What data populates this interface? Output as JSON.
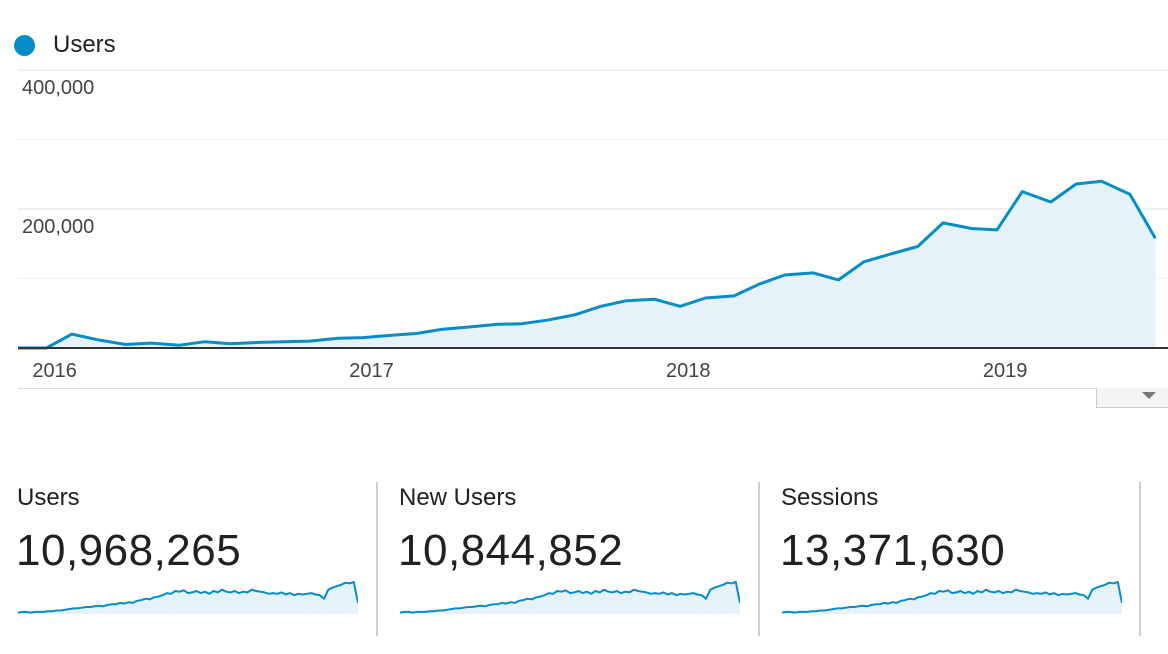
{
  "legend": {
    "label": "Users",
    "color": "#058dc7"
  },
  "chart_data": {
    "type": "area",
    "series": [
      {
        "name": "Users",
        "color": "#058dc7",
        "x": [
          2015.9,
          2015.99,
          2016.07,
          2016.15,
          2016.24,
          2016.32,
          2016.41,
          2016.49,
          2016.57,
          2016.66,
          2016.74,
          2016.82,
          2016.91,
          2016.99,
          2017.07,
          2017.16,
          2017.24,
          2017.32,
          2017.41,
          2017.49,
          2017.57,
          2017.66,
          2017.74,
          2017.82,
          2017.91,
          2017.99,
          2018.07,
          2018.16,
          2018.24,
          2018.32,
          2018.41,
          2018.49,
          2018.57,
          2018.66,
          2018.74,
          2018.82,
          2018.91,
          2018.99,
          2019.07,
          2019.16,
          2019.24,
          2019.32,
          2019.41,
          2019.49
        ],
        "values": [
          0,
          0,
          20000,
          12000,
          5000,
          7000,
          4000,
          9000,
          6000,
          8000,
          9000,
          10000,
          14000,
          15000,
          18000,
          21000,
          27000,
          30000,
          34000,
          35000,
          40000,
          48000,
          60000,
          68000,
          70000,
          60000,
          72000,
          75000,
          92000,
          105000,
          108000,
          98000,
          124000,
          136000,
          146000,
          180000,
          172000,
          170000,
          225000,
          210000,
          236000,
          240000,
          221000,
          158000
        ]
      }
    ],
    "ylim": [
      0,
      400000
    ],
    "yticks": [
      200000,
      400000
    ],
    "ytick_labels": [
      "200,000",
      "400,000"
    ],
    "xticks": [
      2016,
      2017,
      2018,
      2019
    ],
    "xtick_labels": [
      "2016",
      "2017",
      "2018",
      "2019"
    ],
    "xlim": [
      2015.9,
      2019.53
    ],
    "grid": true
  },
  "metrics": [
    {
      "title": "Users",
      "value": "10,968,265",
      "spark": [
        2,
        3,
        3,
        2,
        3,
        3,
        3,
        4,
        4,
        5,
        5,
        6,
        7,
        8,
        8,
        9,
        10,
        10,
        11,
        12,
        11,
        13,
        14,
        14,
        16,
        15,
        17,
        16,
        19,
        20,
        22,
        21,
        24,
        25,
        27,
        30,
        29,
        33,
        32,
        34,
        30,
        31,
        33,
        30,
        32,
        29,
        33,
        31,
        35,
        32,
        31,
        33,
        30,
        32,
        31,
        35,
        33,
        32,
        31,
        29,
        30,
        29,
        31,
        28,
        30,
        27,
        29,
        28,
        29,
        30,
        28,
        27,
        22,
        35,
        38,
        40,
        42,
        45,
        44,
        46,
        16
      ]
    },
    {
      "title": "New Users",
      "value": "10,844,852",
      "spark": [
        2,
        3,
        3,
        2,
        3,
        3,
        3,
        4,
        4,
        5,
        5,
        6,
        7,
        8,
        8,
        9,
        10,
        10,
        11,
        12,
        11,
        13,
        14,
        14,
        16,
        15,
        17,
        16,
        19,
        20,
        22,
        21,
        24,
        25,
        27,
        30,
        29,
        33,
        32,
        34,
        30,
        31,
        33,
        30,
        32,
        29,
        33,
        31,
        35,
        32,
        31,
        33,
        30,
        32,
        31,
        35,
        33,
        32,
        31,
        29,
        30,
        29,
        31,
        28,
        30,
        27,
        29,
        28,
        29,
        30,
        28,
        27,
        22,
        35,
        38,
        40,
        42,
        45,
        44,
        46,
        16
      ]
    },
    {
      "title": "Sessions",
      "value": "13,371,630",
      "spark": [
        2,
        3,
        3,
        2,
        3,
        3,
        3,
        4,
        4,
        5,
        5,
        6,
        7,
        8,
        8,
        9,
        10,
        10,
        11,
        12,
        11,
        13,
        14,
        14,
        16,
        15,
        17,
        16,
        19,
        20,
        22,
        21,
        24,
        25,
        27,
        30,
        29,
        33,
        32,
        34,
        30,
        31,
        33,
        30,
        32,
        29,
        33,
        31,
        35,
        32,
        31,
        33,
        30,
        32,
        31,
        35,
        33,
        32,
        31,
        29,
        30,
        29,
        31,
        28,
        30,
        27,
        29,
        28,
        29,
        30,
        28,
        27,
        22,
        35,
        38,
        40,
        42,
        45,
        44,
        46,
        16
      ]
    }
  ]
}
